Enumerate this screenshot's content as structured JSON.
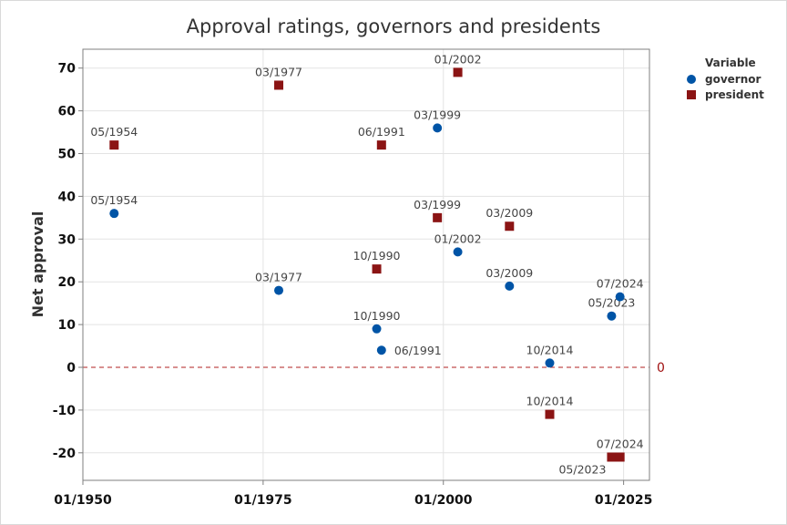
{
  "chart_data": {
    "type": "scatter",
    "title": "Approval ratings, governors and presidents",
    "xlabel": "",
    "ylabel": "Net approval",
    "x_is_date": true,
    "xlim": [
      "01/1950",
      "12/2028"
    ],
    "ylim": [
      -26.5,
      74.5
    ],
    "xticks": [
      "01/1950",
      "01/1975",
      "01/2000",
      "01/2025"
    ],
    "yticks": [
      -20,
      -10,
      0,
      10,
      20,
      30,
      40,
      50,
      60,
      70
    ],
    "grid": true,
    "reference_line": {
      "axis": "y",
      "value": 0,
      "label": "0",
      "style": "dashed",
      "color": "#b22222"
    },
    "legend": {
      "title": "Variable",
      "position": "right"
    },
    "series": [
      {
        "name": "governor",
        "marker": "circle",
        "color": "#0054a6",
        "points": [
          {
            "date": "05/1954",
            "value": 36
          },
          {
            "date": "03/1977",
            "value": 18
          },
          {
            "date": "10/1990",
            "value": 9
          },
          {
            "date": "06/1991",
            "value": 4
          },
          {
            "date": "03/1999",
            "value": 56
          },
          {
            "date": "01/2002",
            "value": 27
          },
          {
            "date": "03/2009",
            "value": 19
          },
          {
            "date": "10/2014",
            "value": 1
          },
          {
            "date": "05/2023",
            "value": 12
          },
          {
            "date": "07/2024",
            "value": 16.5
          }
        ]
      },
      {
        "name": "president",
        "marker": "square",
        "color": "#8b1414",
        "points": [
          {
            "date": "05/1954",
            "value": 52
          },
          {
            "date": "03/1977",
            "value": 66
          },
          {
            "date": "10/1990",
            "value": 23
          },
          {
            "date": "06/1991",
            "value": 52
          },
          {
            "date": "03/1999",
            "value": 35
          },
          {
            "date": "01/2002",
            "value": 69
          },
          {
            "date": "03/2009",
            "value": 33
          },
          {
            "date": "10/2014",
            "value": -11
          },
          {
            "date": "05/2023",
            "value": -21
          },
          {
            "date": "07/2024",
            "value": -21
          }
        ]
      }
    ]
  }
}
